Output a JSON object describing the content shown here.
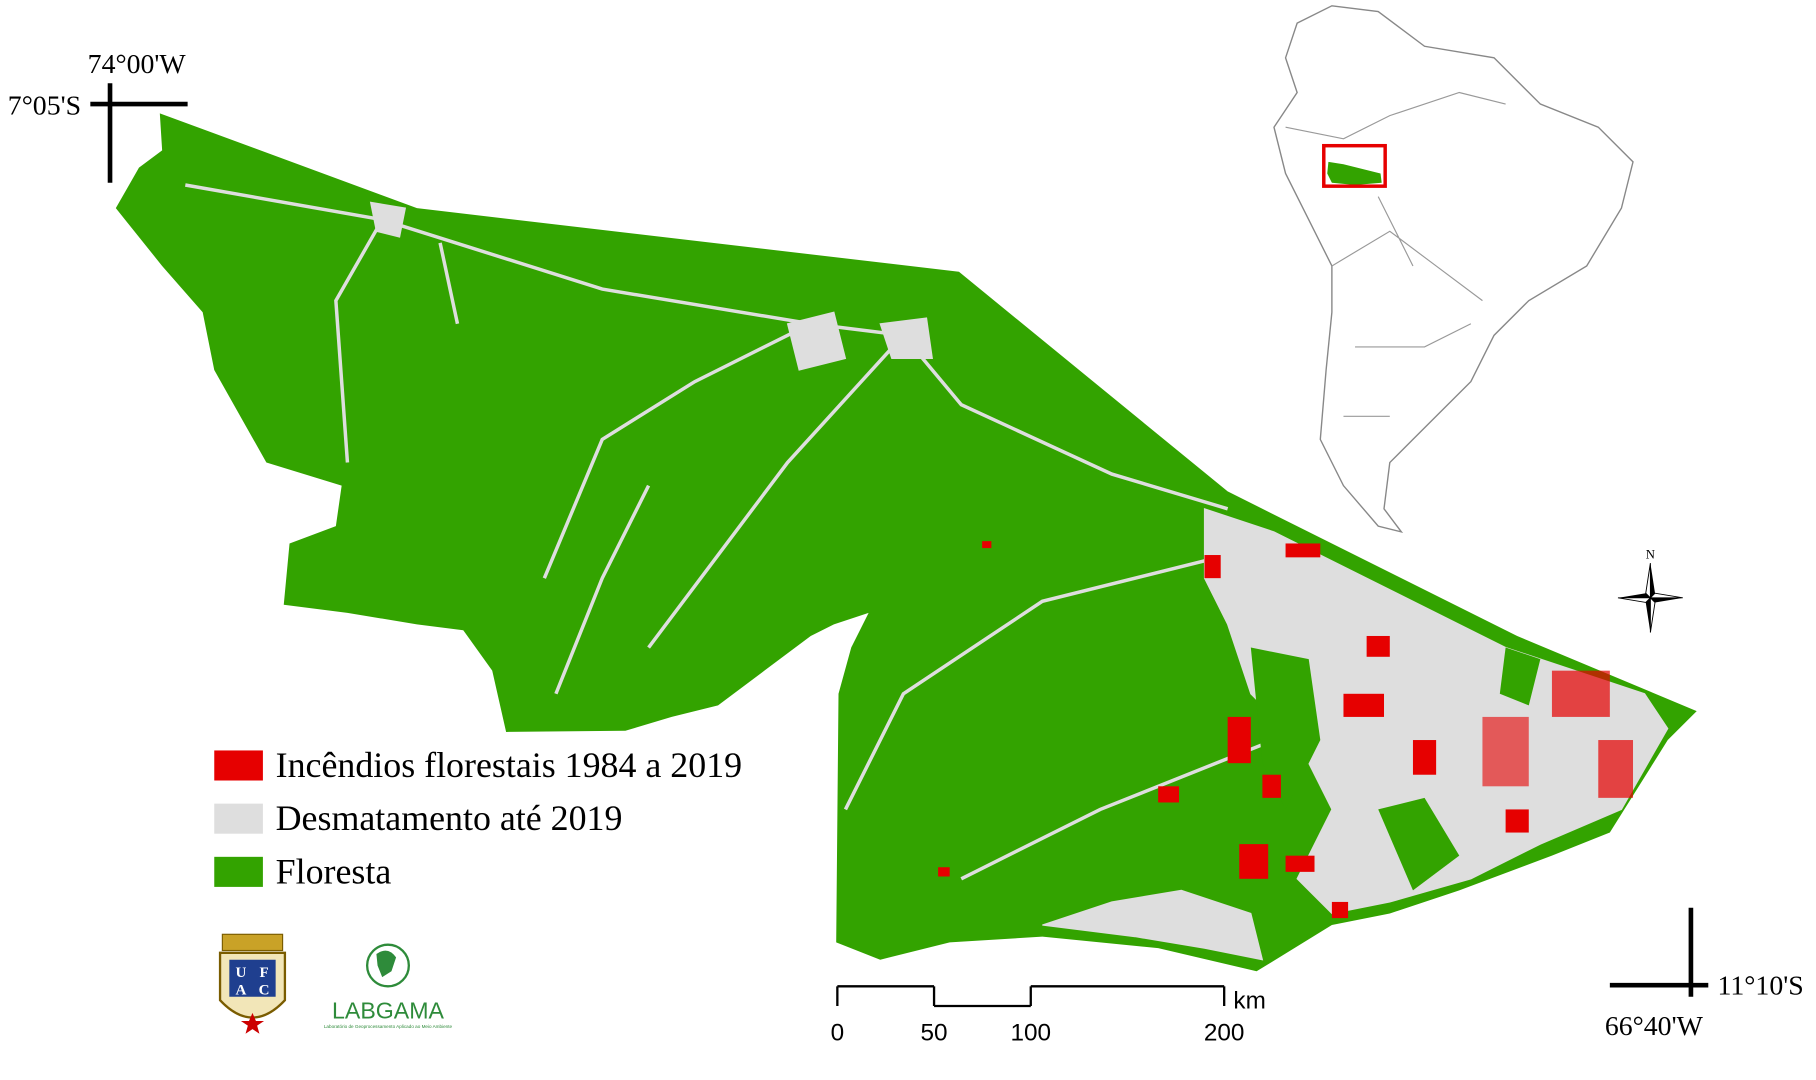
{
  "map": {
    "coordinates": {
      "top_left_lon": "74°00'W",
      "top_left_lat": "7°05'S",
      "bottom_right_lat": "11°10'S",
      "bottom_right_lon": "66°40'W"
    },
    "north_label": "N",
    "legend": [
      {
        "label": "Incêndios florestais 1984 a 2019",
        "color": "#e60000"
      },
      {
        "label": "Desmatamento até 2019",
        "color": "#dedede"
      },
      {
        "label": "Floresta",
        "color": "#33a300"
      }
    ],
    "scale_bar": {
      "ticks": [
        0,
        50,
        100,
        200
      ],
      "unit": "km"
    },
    "logos": {
      "ufac_letters": [
        "U",
        "F",
        "A",
        "C"
      ],
      "labgama": "LABGAMA",
      "labgama_subtitle": "Laboratório de Geoprocessamento Aplicado ao Meio Ambiente"
    }
  }
}
